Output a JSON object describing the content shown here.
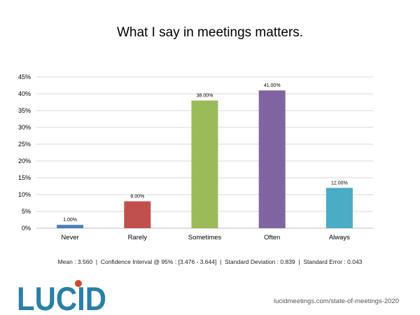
{
  "chart_data": {
    "type": "bar",
    "title": "What I say in meetings matters.",
    "categories": [
      "Never",
      "Rarely",
      "Sometimes",
      "Often",
      "Always"
    ],
    "values": [
      1.0,
      8.0,
      38.0,
      41.0,
      12.0
    ],
    "data_labels": [
      "1.00%",
      "8.00%",
      "38.00%",
      "41.00%",
      "12.00%"
    ],
    "bar_colors": [
      "#4a7ebb",
      "#c0504d",
      "#9bbb59",
      "#8064a2",
      "#4bacc6"
    ],
    "ylim": [
      0,
      45
    ],
    "yticks": [
      0,
      5,
      10,
      15,
      20,
      25,
      30,
      35,
      40,
      45
    ],
    "ytick_labels": [
      "0%",
      "5%",
      "10%",
      "15%",
      "20%",
      "25%",
      "30%",
      "35%",
      "40%",
      "45%"
    ],
    "xlabel": "",
    "ylabel": "",
    "grid": true,
    "legend": "none"
  },
  "stats_line": "Mean : 3.560  |  Confidence Interval @ 95% : [3.476 - 3.644]  |  Standard Deviation : 0.839  |  Standard Error : 0.043",
  "logo": {
    "text": "LUCID",
    "text_color": "#2a7fa6",
    "dot_color": "#d9472b"
  },
  "source": "lucidmeetings.com/state-of-meetings-2020"
}
